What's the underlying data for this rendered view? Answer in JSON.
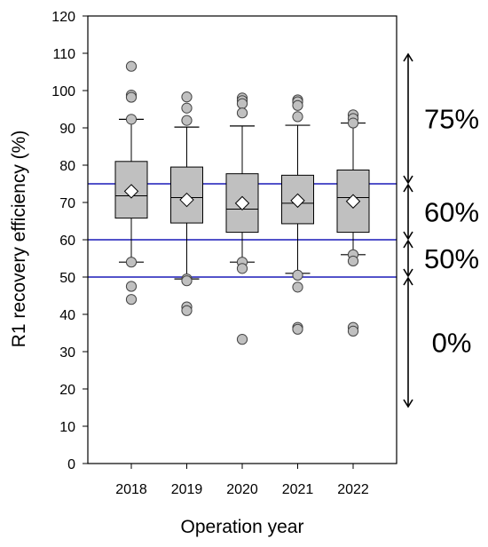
{
  "chart_data": {
    "type": "box",
    "xlabel": "Operation year",
    "ylabel": "R1 recovery efficiency (%)",
    "ylim": [
      0,
      120
    ],
    "yticks": [
      0,
      10,
      20,
      30,
      40,
      50,
      60,
      70,
      80,
      90,
      100,
      110,
      120
    ],
    "categories": [
      "2018",
      "2019",
      "2020",
      "2021",
      "2022"
    ],
    "boxes": [
      {
        "category": "2018",
        "whisker_low": 54,
        "q1": 65.8,
        "median": 71.8,
        "q3": 81,
        "whisker_high": 92.3,
        "mean": 73,
        "outliers": [
          106.5,
          98.8,
          98.2,
          92.3,
          54,
          47.5,
          44
        ]
      },
      {
        "category": "2019",
        "whisker_low": 49.5,
        "q1": 64.5,
        "median": 71.3,
        "q3": 79.5,
        "whisker_high": 90.2,
        "mean": 70.7,
        "outliers": [
          98.3,
          95.3,
          92,
          49.5,
          49,
          42,
          41
        ]
      },
      {
        "category": "2020",
        "whisker_low": 54,
        "q1": 62,
        "median": 68.2,
        "q3": 77.7,
        "whisker_high": 90.5,
        "mean": 69.8,
        "outliers": [
          98,
          97.3,
          96.5,
          94,
          54,
          52.3,
          33.3
        ]
      },
      {
        "category": "2021",
        "whisker_low": 51,
        "q1": 64.3,
        "median": 69.8,
        "q3": 77.3,
        "whisker_high": 90.7,
        "mean": 70.5,
        "outliers": [
          97.5,
          97,
          96,
          93,
          50.5,
          47.3,
          36.5,
          36
        ]
      },
      {
        "category": "2022",
        "whisker_low": 56,
        "q1": 62,
        "median": 71.3,
        "q3": 78.7,
        "whisker_high": 91.3,
        "mean": 70.3,
        "outliers": [
          93.5,
          92.5,
          91.3,
          56,
          54.3,
          36.5,
          35.5
        ]
      }
    ],
    "reference_lines": [
      {
        "y": 75,
        "color": "#1a1ab8"
      },
      {
        "y": 60,
        "color": "#1a1ab8"
      },
      {
        "y": 50,
        "color": "#1a1ab8"
      }
    ],
    "range_annotations": [
      {
        "label": "75%",
        "from": 75,
        "to": 110
      },
      {
        "label": "60%",
        "from": 60,
        "to": 75
      },
      {
        "label": "50%",
        "from": 50,
        "to": 60
      },
      {
        "label": "0%",
        "from": 15,
        "to": 50
      }
    ],
    "colors": {
      "box_fill": "#c0c0c0",
      "outlier_fill": "#c0c0c0",
      "mean_fill": "#ffffff",
      "reference_line": "#1a1ab8",
      "axis": "#000000"
    }
  }
}
